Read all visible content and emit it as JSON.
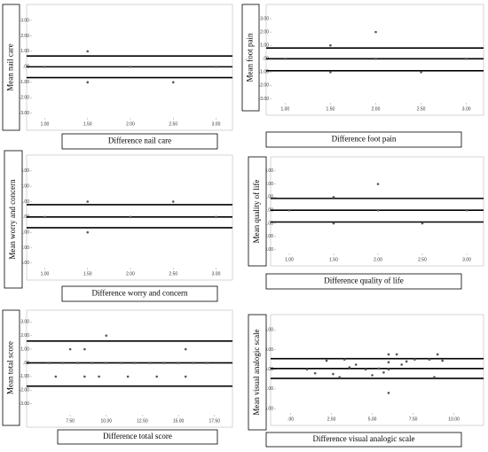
{
  "chart_data": [
    {
      "type": "scatter",
      "x_label": "Difference nail care",
      "y_label": "Mean nail care",
      "color": "#555555",
      "x": [
        1.0,
        1.5,
        1.5,
        2.0,
        2.5,
        3.0
      ],
      "y": [
        0,
        1,
        -1,
        0,
        -1,
        0
      ],
      "reference_lines": [
        0.7,
        0,
        -0.7
      ],
      "xlim": [
        0.85,
        3.15
      ],
      "ylim": [
        -3.3,
        3.8
      ],
      "xticks": [
        {
          "value": 1,
          "label": "1.00"
        },
        {
          "value": 1.5,
          "label": "1.50"
        },
        {
          "value": 2,
          "label": "2.00"
        },
        {
          "value": 2.5,
          "label": "2.50"
        },
        {
          "value": 3,
          "label": "3.00"
        }
      ],
      "yticks": [
        {
          "value": 3,
          "label": "3.00"
        },
        {
          "value": 2,
          "label": "2.00"
        },
        {
          "value": 1,
          "label": "1.00"
        },
        {
          "value": 0,
          "label": ".00"
        },
        {
          "value": -1,
          "label": "-1.00"
        },
        {
          "value": -2,
          "label": "-2.00"
        },
        {
          "value": -3,
          "label": "-3.00"
        }
      ]
    },
    {
      "type": "scatter",
      "x_label": "Difference foot pain",
      "y_label": "Mean foot pain",
      "color": "#555555",
      "x": [
        1.0,
        1.5,
        1.5,
        2.0,
        2.0,
        2.5,
        3.0
      ],
      "y": [
        0,
        1,
        -1,
        2,
        0,
        -1,
        0
      ],
      "reference_lines": [
        0.8,
        0,
        -0.9
      ],
      "xlim": [
        0.85,
        3.15
      ],
      "ylim": [
        -3.3,
        3.8
      ],
      "xticks": [
        {
          "value": 1,
          "label": "1.00"
        },
        {
          "value": 1.5,
          "label": "1.50"
        },
        {
          "value": 2,
          "label": "2.00"
        },
        {
          "value": 2.5,
          "label": "2.50"
        },
        {
          "value": 3,
          "label": "3.00"
        }
      ],
      "yticks": [
        {
          "value": 3,
          "label": "3.00"
        },
        {
          "value": 2,
          "label": "2.00"
        },
        {
          "value": 1,
          "label": "1.00"
        },
        {
          "value": 0,
          "label": ".00"
        },
        {
          "value": -1,
          "label": "-1.00"
        },
        {
          "value": -2,
          "label": "-2.00"
        },
        {
          "value": -3,
          "label": "-3.00"
        }
      ]
    },
    {
      "type": "scatter",
      "x_label": "Difference worry and concern",
      "y_label": "Mean worry and concern",
      "color": "#555555",
      "x": [
        1.0,
        1.5,
        1.5,
        2.0,
        2.5,
        3.0
      ],
      "y": [
        0,
        1,
        -1,
        0,
        1,
        0
      ],
      "reference_lines": [
        0.8,
        0,
        -0.7
      ],
      "xlim": [
        0.85,
        3.15
      ],
      "ylim": [
        -3.3,
        3.8
      ],
      "xticks": [
        {
          "value": 1,
          "label": "1.00"
        },
        {
          "value": 1.5,
          "label": "1.50"
        },
        {
          "value": 2,
          "label": "2.00"
        },
        {
          "value": 2.5,
          "label": "2.50"
        },
        {
          "value": 3,
          "label": "3.00"
        }
      ],
      "yticks": [
        {
          "value": 3,
          "label": "3.00"
        },
        {
          "value": 2,
          "label": "2.00"
        },
        {
          "value": 1,
          "label": "1.00"
        },
        {
          "value": 0,
          "label": ".00"
        },
        {
          "value": -1,
          "label": "-1.00"
        },
        {
          "value": -2,
          "label": "-2.00"
        },
        {
          "value": -3,
          "label": "-3.00"
        }
      ]
    },
    {
      "type": "scatter",
      "x_label": "Difference quality of life",
      "y_label": "Mean quality of life",
      "color": "#555555",
      "x": [
        1.0,
        1.5,
        1.5,
        2.0,
        2.0,
        2.5,
        3.0
      ],
      "y": [
        0,
        1,
        -1,
        2,
        0,
        -1,
        0
      ],
      "reference_lines": [
        0.9,
        0,
        -0.9
      ],
      "xlim": [
        0.85,
        3.15
      ],
      "ylim": [
        -3.3,
        3.8
      ],
      "xticks": [
        {
          "value": 1,
          "label": "1.00"
        },
        {
          "value": 1.5,
          "label": "1.50"
        },
        {
          "value": 2,
          "label": "2.00"
        },
        {
          "value": 2.5,
          "label": "2.50"
        },
        {
          "value": 3,
          "label": "3.00"
        }
      ],
      "yticks": [
        {
          "value": 3,
          "label": "3.00"
        },
        {
          "value": 2,
          "label": "2.00"
        },
        {
          "value": 1,
          "label": "1.00"
        },
        {
          "value": 0,
          "label": ".00"
        },
        {
          "value": -1,
          "label": "-1.00"
        },
        {
          "value": -2,
          "label": "-2.00"
        },
        {
          "value": -3,
          "label": "-3.00"
        }
      ]
    },
    {
      "type": "scatter",
      "x_label": "Difference total score",
      "y_label": "Mean total score",
      "color": "#555555",
      "x": [
        6.0,
        7.0,
        8.0,
        9.0,
        10.0,
        11.0,
        12.0,
        13.0,
        14.0,
        15.0,
        16.0,
        17.0,
        7.5,
        8.5,
        15.5,
        6.5,
        8.5,
        9.5,
        11.5,
        13.5,
        15.5,
        10.0
      ],
      "y": [
        0,
        0,
        0,
        0,
        0,
        0,
        0,
        0,
        0,
        0,
        0,
        0,
        1,
        1,
        1,
        -1,
        -1,
        -1,
        -1,
        -1,
        -1,
        2
      ],
      "reference_lines": [
        1.6,
        0,
        -1.7
      ],
      "xlim": [
        4.85,
        18.5
      ],
      "ylim": [
        -3.8,
        3.6
      ],
      "xticks": [
        {
          "value": 7.5,
          "label": "7.50"
        },
        {
          "value": 10,
          "label": "10.00"
        },
        {
          "value": 12.5,
          "label": "12.50"
        },
        {
          "value": 15,
          "label": "15.00"
        },
        {
          "value": 17.5,
          "label": "17.50"
        }
      ],
      "yticks": [
        {
          "value": 3,
          "label": "3.00"
        },
        {
          "value": 2,
          "label": "2.00"
        },
        {
          "value": 1,
          "label": "1.00"
        },
        {
          "value": 0,
          "label": ".00"
        },
        {
          "value": -1,
          "label": "-1.00"
        },
        {
          "value": -2,
          "label": "-2.00"
        },
        {
          "value": -3,
          "label": "-3.00"
        }
      ]
    },
    {
      "type": "scatter",
      "x_label": "Difference visual analogic scale",
      "y_label": "Mean visual analogic scale",
      "color": "#555555",
      "x": [
        1.0,
        1.5,
        2.2,
        2.6,
        3.0,
        3.3,
        3.6,
        4.0,
        4.6,
        5.0,
        5.4,
        5.7,
        6.0,
        6.0,
        6.0,
        6.0,
        6.5,
        6.8,
        7.1,
        7.6,
        8.5,
        8.8,
        9.0,
        9.3
      ],
      "y": [
        5.0,
        4.0,
        7.2,
        3.8,
        3.0,
        7.5,
        5.5,
        6.2,
        5.0,
        3.5,
        5.2,
        4.2,
        8.8,
        6.8,
        5.0,
        -1.0,
        8.8,
        6.2,
        7.0,
        7.5,
        7.5,
        3.0,
        8.8,
        7.2
      ],
      "reference_lines": [
        7.7,
        5.2,
        2.7
      ],
      "xlim": [
        -0.9,
        11.6
      ],
      "ylim": [
        -6.1,
        18
      ],
      "xticks": [
        {
          "value": 0,
          "label": ".00"
        },
        {
          "value": 2.5,
          "label": "2.50"
        },
        {
          "value": 5,
          "label": "5.00"
        },
        {
          "value": 7.5,
          "label": "7.50"
        },
        {
          "value": 10,
          "label": "10.00"
        }
      ],
      "yticks": [
        {
          "value": 15,
          "label": "15.00"
        },
        {
          "value": 10,
          "label": "10.00"
        },
        {
          "value": 5,
          "label": "5.00"
        },
        {
          "value": 0,
          "label": ".00"
        },
        {
          "value": -5,
          "label": "-5.00"
        }
      ]
    }
  ]
}
